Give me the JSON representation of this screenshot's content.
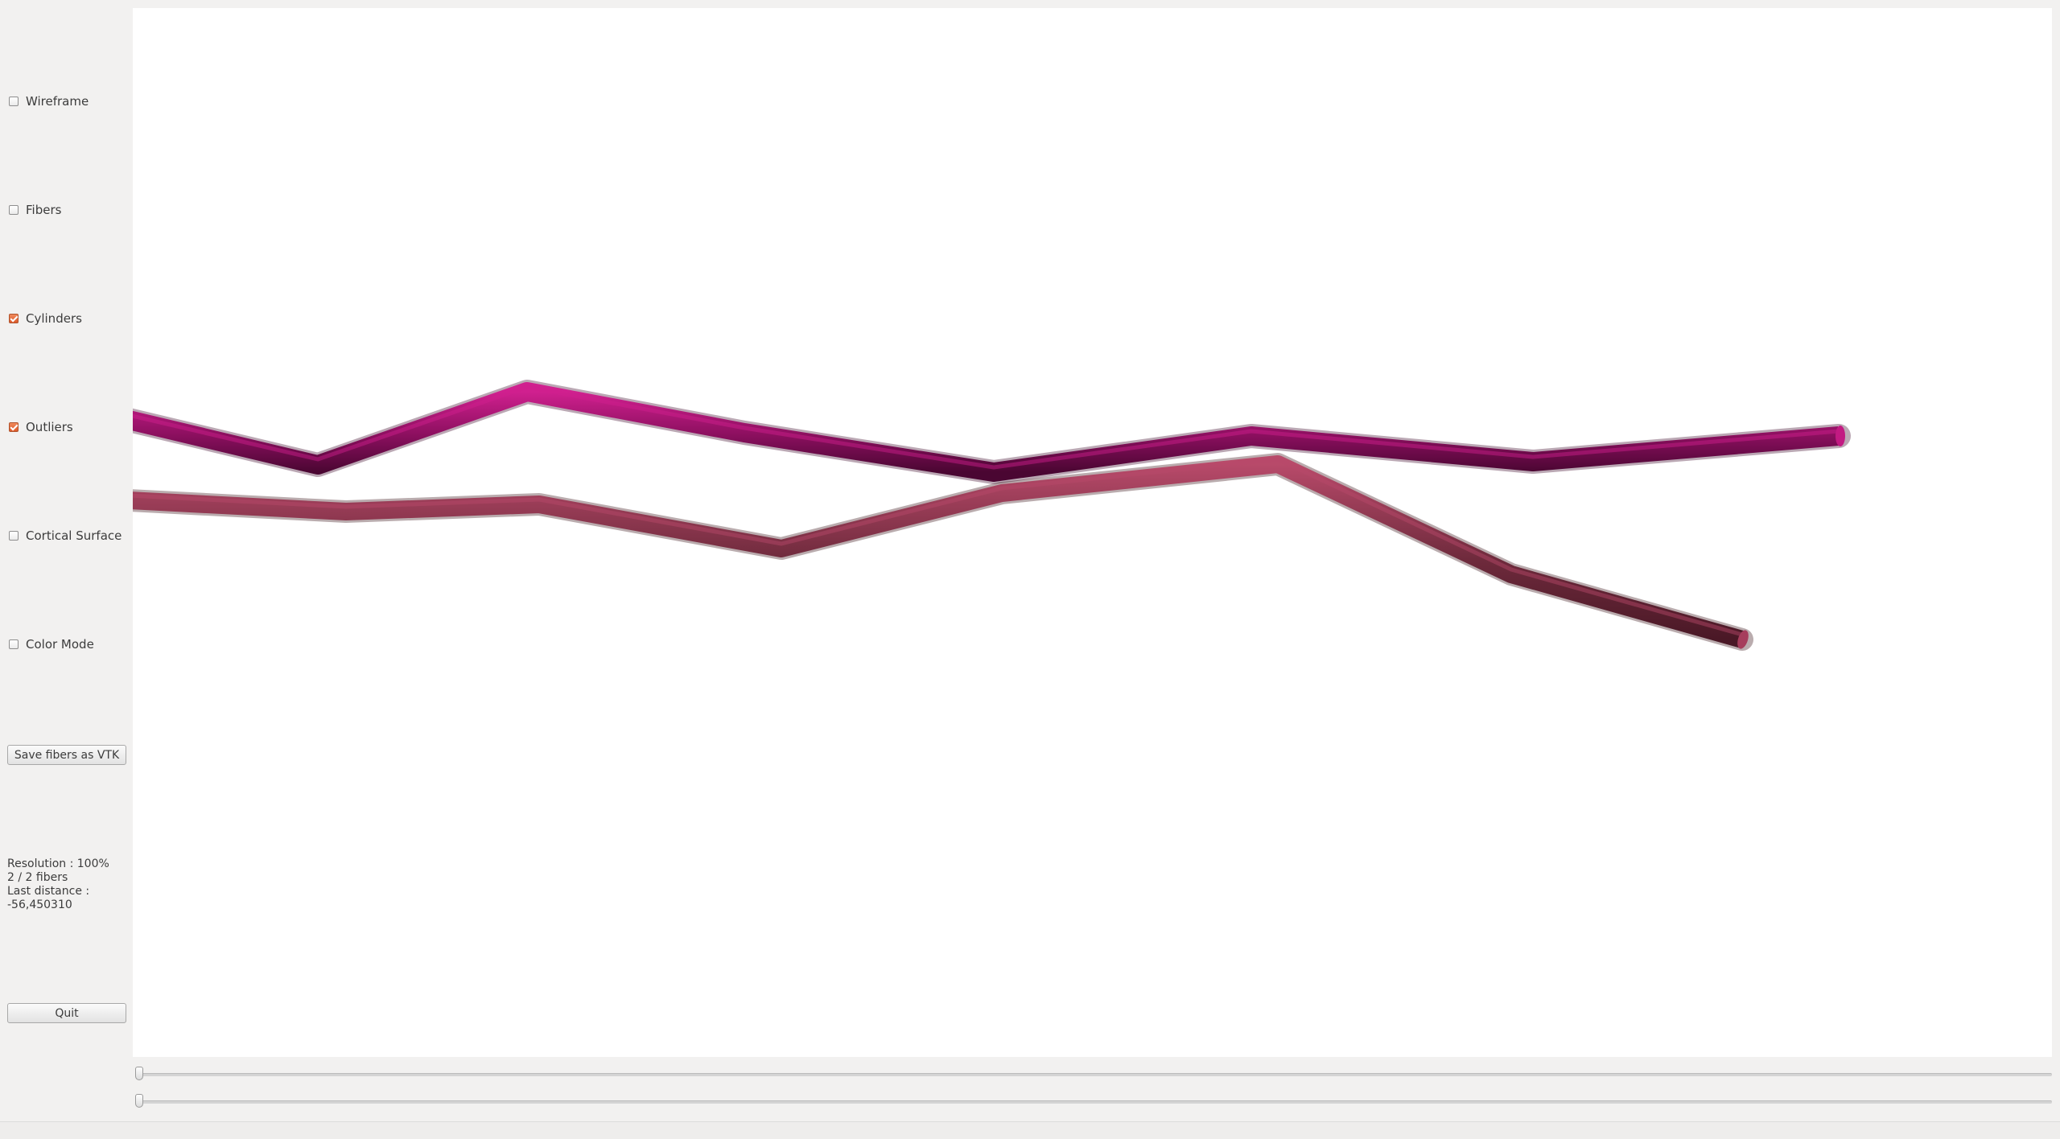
{
  "sidebar": {
    "checkboxes": [
      {
        "label": "Wireframe",
        "checked": false
      },
      {
        "label": "Fibers",
        "checked": false
      },
      {
        "label": "Cylinders",
        "checked": true
      },
      {
        "label": "Outliers",
        "checked": true
      },
      {
        "label": "Cortical Surface",
        "checked": false
      },
      {
        "label": "Color Mode",
        "checked": false
      }
    ],
    "save_button_label": "Save fibers as VTK",
    "info": {
      "resolution": "Resolution : 100%",
      "fibers": "2 / 2 fibers",
      "last_distance_label": "Last distance :",
      "last_distance_value": "-56,450310"
    },
    "quit_button_label": "Quit"
  },
  "viewport": {
    "background": "#ffffff",
    "fibers": [
      {
        "name": "fiber-1",
        "color": "#8a0f5e",
        "highlight": "#d0208f"
      },
      {
        "name": "fiber-2",
        "color": "#6e2a3c",
        "highlight": "#b84a6a"
      }
    ]
  },
  "sliders": [
    {
      "name": "slider-1",
      "value": 0
    },
    {
      "name": "slider-2",
      "value": 0
    }
  ],
  "colors": {
    "accent": "#dd5a2a",
    "window_bg": "#f2f1f0"
  }
}
